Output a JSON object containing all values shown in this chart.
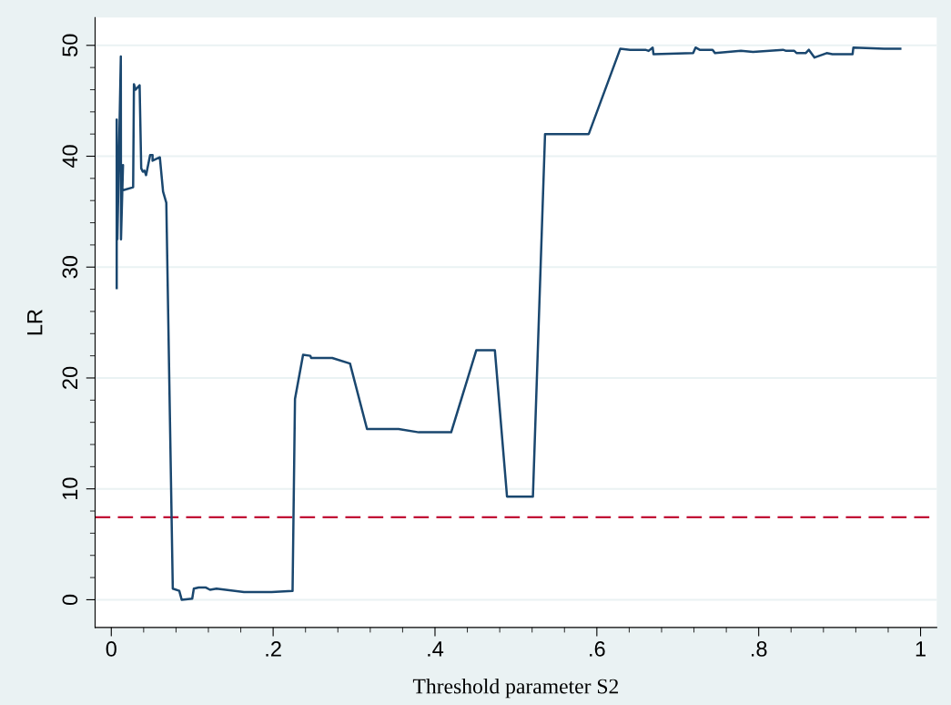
{
  "chart_data": {
    "type": "line",
    "xlabel": "Threshold parameter S2",
    "ylabel": "LR",
    "xlim": [
      -0.02,
      1.02
    ],
    "ylim": [
      -2.5,
      52.5
    ],
    "xticks": [
      {
        "value": 0,
        "label": "0"
      },
      {
        "value": 0.04,
        "label": null
      },
      {
        "value": 0.08,
        "label": null
      },
      {
        "value": 0.12,
        "label": null
      },
      {
        "value": 0.16,
        "label": null
      },
      {
        "value": 0.2,
        "label": ".2"
      },
      {
        "value": 0.24,
        "label": null
      },
      {
        "value": 0.28,
        "label": null
      },
      {
        "value": 0.32,
        "label": null
      },
      {
        "value": 0.36,
        "label": null
      },
      {
        "value": 0.4,
        "label": ".4"
      },
      {
        "value": 0.44,
        "label": null
      },
      {
        "value": 0.48,
        "label": null
      },
      {
        "value": 0.52,
        "label": null
      },
      {
        "value": 0.56,
        "label": null
      },
      {
        "value": 0.6,
        "label": ".6"
      },
      {
        "value": 0.64,
        "label": null
      },
      {
        "value": 0.68,
        "label": null
      },
      {
        "value": 0.72,
        "label": null
      },
      {
        "value": 0.76,
        "label": null
      },
      {
        "value": 0.8,
        "label": ".8"
      },
      {
        "value": 0.84,
        "label": null
      },
      {
        "value": 0.88,
        "label": null
      },
      {
        "value": 0.92,
        "label": null
      },
      {
        "value": 0.96,
        "label": null
      },
      {
        "value": 1,
        "label": "1"
      }
    ],
    "yticks": [
      0,
      {
        "value": 2,
        "label": null
      },
      {
        "value": 4,
        "label": null
      },
      {
        "value": 6,
        "label": null
      },
      {
        "value": 8,
        "label": null
      },
      10,
      {
        "value": 12,
        "label": null
      },
      {
        "value": 14,
        "label": null
      },
      {
        "value": 16,
        "label": null
      },
      {
        "value": 18,
        "label": null
      },
      20,
      {
        "value": 22,
        "label": null
      },
      {
        "value": 24,
        "label": null
      },
      {
        "value": 26,
        "label": null
      },
      {
        "value": 28,
        "label": null
      },
      30,
      {
        "value": 32,
        "label": null
      },
      {
        "value": 34,
        "label": null
      },
      {
        "value": 36,
        "label": null
      },
      {
        "value": 38,
        "label": null
      },
      40,
      {
        "value": 42,
        "label": null
      },
      {
        "value": 44,
        "label": null
      },
      {
        "value": 46,
        "label": null
      },
      {
        "value": 48,
        "label": null
      },
      50
    ],
    "grid": "y",
    "legend": false,
    "marker": "none",
    "line_style": "solid",
    "series": [
      {
        "color": "#1a476f",
        "x": [
          0.0067,
          0.0067,
          0.0075,
          0.0118,
          0.012,
          0.0145,
          0.013,
          0.027,
          0.028,
          0.03,
          0.035,
          0.037,
          0.039,
          0.041,
          0.043,
          0.048,
          0.051,
          0.051,
          0.06,
          0.064,
          0.068,
          0.076,
          0.084,
          0.087,
          0.1,
          0.102,
          0.108,
          0.117,
          0.122,
          0.13,
          0.164,
          0.198,
          0.224,
          0.227,
          0.237,
          0.246,
          0.247,
          0.273,
          0.295,
          0.316,
          0.34,
          0.355,
          0.38,
          0.42,
          0.451,
          0.474,
          0.489,
          0.521,
          0.536,
          0.59,
          0.629,
          0.641,
          0.66,
          0.664,
          0.669,
          0.67,
          0.719,
          0.722,
          0.727,
          0.743,
          0.746,
          0.778,
          0.793,
          0.83,
          0.834,
          0.844,
          0.847,
          0.858,
          0.862,
          0.869,
          0.884,
          0.891,
          0.916,
          0.917,
          0.955,
          0.959,
          0.975
        ],
        "values": [
          28.1,
          43.3,
          32.5,
          49.0,
          32.5,
          39.2,
          36.9,
          37.2,
          46.5,
          46.0,
          46.4,
          38.9,
          38.6,
          38.7,
          38.3,
          40.1,
          40.1,
          39.6,
          39.9,
          36.8,
          35.8,
          1.0,
          0.8,
          0.0,
          0.1,
          1.0,
          1.1,
          1.1,
          0.9,
          1.0,
          0.7,
          0.7,
          0.8,
          18.1,
          22.1,
          22.0,
          21.8,
          21.8,
          21.3,
          15.4,
          15.4,
          15.4,
          15.1,
          15.1,
          22.5,
          22.5,
          9.3,
          9.3,
          42.0,
          42.0,
          49.7,
          49.6,
          49.6,
          49.5,
          49.8,
          49.2,
          49.3,
          49.8,
          49.6,
          49.6,
          49.3,
          49.5,
          49.4,
          49.6,
          49.5,
          49.5,
          49.3,
          49.3,
          49.6,
          48.9,
          49.3,
          49.2,
          49.2,
          49.8,
          49.7,
          49.7,
          49.7
        ]
      }
    ],
    "ref_lines": [
      {
        "axis": "y",
        "value": 7.44,
        "color": "#c10534",
        "line_style": "dashed"
      }
    ]
  }
}
